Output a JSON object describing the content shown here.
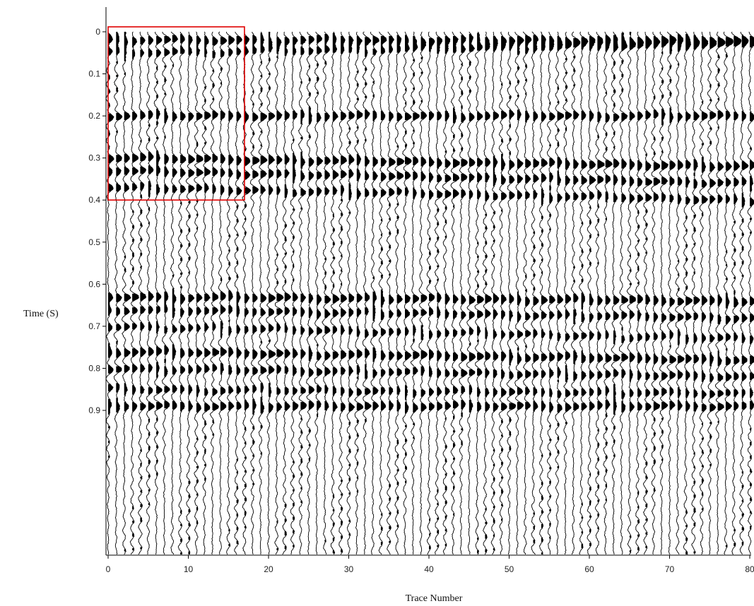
{
  "chart_data": {
    "type": "seismic-wiggle",
    "xlabel": "Trace Number",
    "ylabel": "Time (S)",
    "xlim": [
      0,
      81
    ],
    "ylim": [
      1.0,
      0.0
    ],
    "x_ticks": [
      "0",
      "10",
      "20",
      "30",
      "40",
      "50",
      "60",
      "70",
      "80"
    ],
    "y_ticks": [
      "0",
      "0.1",
      "0.2",
      "0.3",
      "0.4",
      "0.5",
      "0.6",
      "0.7",
      "0.8",
      "0.9"
    ],
    "trace_count": 81,
    "highlight_box": {
      "trace_range": [
        0,
        17
      ],
      "time_range": [
        0.0,
        0.4
      ],
      "color": "#e00000"
    },
    "reflection_events": [
      {
        "t0": 0.02,
        "t80": 0.02,
        "amp": 0.9
      },
      {
        "t0": 0.05,
        "t80": 0.03,
        "amp": 0.7
      },
      {
        "t0": 0.2,
        "t80": 0.2,
        "amp": 0.9
      },
      {
        "t0": 0.3,
        "t80": 0.32,
        "amp": 1.0
      },
      {
        "t0": 0.33,
        "t80": 0.36,
        "amp": 0.9
      },
      {
        "t0": 0.37,
        "t80": 0.4,
        "amp": 0.8
      },
      {
        "t0": 0.63,
        "t80": 0.64,
        "amp": 0.95
      },
      {
        "t0": 0.66,
        "t80": 0.68,
        "amp": 0.8
      },
      {
        "t0": 0.7,
        "t80": 0.73,
        "amp": 0.7
      },
      {
        "t0": 0.76,
        "t80": 0.78,
        "amp": 0.95
      },
      {
        "t0": 0.8,
        "t80": 0.82,
        "amp": 0.8
      },
      {
        "t0": 0.85,
        "t80": 0.86,
        "amp": 0.75
      },
      {
        "t0": 0.89,
        "t80": 0.89,
        "amp": 0.9
      }
    ],
    "grid": false,
    "legend": "none"
  }
}
